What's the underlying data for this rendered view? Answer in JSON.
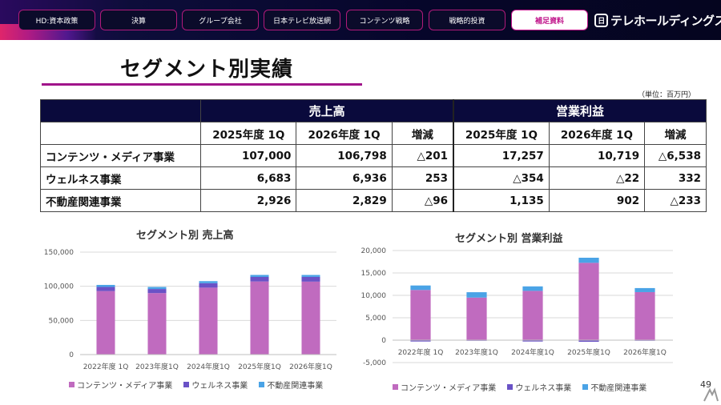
{
  "nav": {
    "tabs": [
      {
        "label": "HD:資本政策"
      },
      {
        "label": "決算"
      },
      {
        "label": "グループ会社"
      },
      {
        "label": "日本テレビ放送網"
      },
      {
        "label": "コンテンツ戦略"
      },
      {
        "label": "戦略的投資"
      },
      {
        "label": "補足資料"
      }
    ],
    "active_index": 6,
    "brand": "テレホールディングス"
  },
  "page": {
    "title": "セグメント別実績",
    "unit": "（単位：百万円）",
    "number": "49"
  },
  "table": {
    "group_headers": [
      "売上高",
      "営業利益"
    ],
    "sub_headers": [
      "2025年度 1Q",
      "2026年度 1Q",
      "増減",
      "2025年度 1Q",
      "2026年度 1Q",
      "増減"
    ],
    "rows": [
      {
        "label": "コンテンツ・メディア事業",
        "cells": [
          "107,000",
          "106,798",
          "△201",
          "17,257",
          "10,719",
          "△6,538"
        ]
      },
      {
        "label": "ウェルネス事業",
        "cells": [
          "6,683",
          "6,936",
          "253",
          "△354",
          "△22",
          "332"
        ]
      },
      {
        "label": "不動産関連事業",
        "cells": [
          "2,926",
          "2,829",
          "△96",
          "1,135",
          "902",
          "△233"
        ]
      }
    ]
  },
  "colors": {
    "content_media": "#c06bbf",
    "wellness": "#6a52c6",
    "real_estate": "#4aa3e6",
    "accent": "#a0148a",
    "header_navy": "#0a0a3c"
  },
  "chart_data": [
    {
      "type": "bar",
      "stacked": true,
      "title": "セグメント別 売上高",
      "categories": [
        "2022年度 1Q",
        "2023年度1Q",
        "2024年度1Q",
        "2025年度1Q",
        "2026年度1Q"
      ],
      "series": [
        {
          "name": "コンテンツ・メディア事業",
          "values": [
            93000,
            90000,
            98000,
            107000,
            106798
          ]
        },
        {
          "name": "ウェルネス事業",
          "values": [
            6000,
            6000,
            6500,
            6683,
            6936
          ]
        },
        {
          "name": "不動産関連事業",
          "values": [
            3000,
            3000,
            3000,
            2926,
            2829
          ]
        }
      ],
      "ylim": [
        0,
        150000
      ],
      "yticks": [
        "0",
        "50,000",
        "100,000",
        "150,000"
      ],
      "ytick_values": [
        0,
        50000,
        100000,
        150000
      ],
      "grid": true,
      "legend": "bottom"
    },
    {
      "type": "bar",
      "stacked": true,
      "title": "セグメント別 営業利益",
      "categories": [
        "2022年度 1Q",
        "2023年度1Q",
        "2024年度1Q",
        "2025年度1Q",
        "2026年度1Q"
      ],
      "series": [
        {
          "name": "コンテンツ・メディア事業",
          "values": [
            11200,
            9500,
            11000,
            17257,
            10719
          ]
        },
        {
          "name": "ウェルネス事業",
          "values": [
            -300,
            -100,
            -300,
            -354,
            -22
          ]
        },
        {
          "name": "不動産関連事業",
          "values": [
            1000,
            1200,
            1000,
            1135,
            902
          ]
        }
      ],
      "ylim": [
        -5000,
        20000
      ],
      "yticks": [
        "-5,000",
        "0",
        "5,000",
        "10,000",
        "15,000",
        "20,000"
      ],
      "ytick_values": [
        -5000,
        0,
        5000,
        10000,
        15000,
        20000
      ],
      "grid": true,
      "legend": "bottom"
    }
  ]
}
